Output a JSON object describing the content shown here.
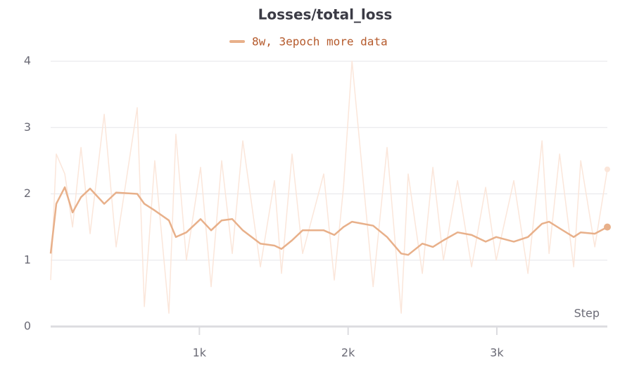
{
  "chart_data": {
    "type": "line",
    "title": "Losses/total_loss",
    "x_label": "Step",
    "x": [
      0,
      38,
      95,
      147,
      204,
      265,
      360,
      440,
      582,
      630,
      700,
      795,
      842,
      913,
      1008,
      1079,
      1150,
      1221,
      1292,
      1410,
      1505,
      1552,
      1623,
      1694,
      1836,
      1907,
      1969,
      2026,
      2168,
      2262,
      2357,
      2404,
      2499,
      2570,
      2641,
      2736,
      2830,
      2925,
      2996,
      3114,
      3209,
      3304,
      3351,
      3422,
      3517,
      3564,
      3659,
      3743
    ],
    "series": [
      {
        "name": "8w, 3epoch more data",
        "color": "#e8b08a",
        "values": [
          1.1,
          1.85,
          2.1,
          1.72,
          1.95,
          2.08,
          1.85,
          2.02,
          2.0,
          1.85,
          1.75,
          1.6,
          1.35,
          1.42,
          1.62,
          1.45,
          1.6,
          1.62,
          1.45,
          1.25,
          1.22,
          1.17,
          1.3,
          1.45,
          1.45,
          1.38,
          1.5,
          1.58,
          1.52,
          1.35,
          1.1,
          1.08,
          1.25,
          1.2,
          1.3,
          1.42,
          1.38,
          1.28,
          1.35,
          1.28,
          1.35,
          1.55,
          1.58,
          1.48,
          1.35,
          1.42,
          1.4,
          1.5
        ],
        "raw_color": "#fbe6da",
        "raw_values": [
          0.7,
          2.6,
          2.3,
          1.5,
          2.7,
          1.4,
          3.2,
          1.2,
          3.3,
          0.3,
          2.5,
          0.2,
          2.9,
          1.0,
          2.4,
          0.6,
          2.5,
          1.1,
          2.8,
          0.9,
          2.2,
          0.8,
          2.6,
          1.1,
          2.3,
          0.7,
          2.1,
          4.0,
          0.6,
          2.7,
          0.2,
          2.3,
          0.8,
          2.4,
          1.0,
          2.2,
          0.9,
          2.1,
          1.0,
          2.2,
          0.8,
          2.8,
          1.1,
          2.6,
          0.9,
          2.5,
          1.2,
          2.37
        ]
      }
    ],
    "xlim": [
      0,
      3743
    ],
    "ylim": [
      0,
      4
    ],
    "xticks": [
      {
        "value": 1000,
        "label": "1k"
      },
      {
        "value": 2000,
        "label": "2k"
      },
      {
        "value": 3000,
        "label": "3k"
      }
    ],
    "yticks": [
      0,
      1,
      2,
      3,
      4
    ],
    "grid": true
  }
}
